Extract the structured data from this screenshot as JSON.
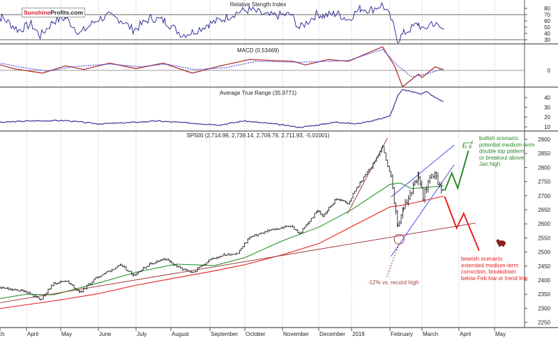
{
  "logo": {
    "part1": "Sunshine",
    "part2": "Profits.com"
  },
  "chart_data": [
    {
      "type": "line",
      "title": "Relative Stength Index",
      "yticks": [
        30,
        40,
        50,
        60,
        70,
        80
      ],
      "ylim": [
        25,
        90
      ],
      "reference_lines": [
        30,
        70
      ],
      "color": "#33339a",
      "points": [
        [
          "2017-03-01",
          60
        ],
        [
          "2017-03-10",
          66
        ],
        [
          "2017-03-25",
          45
        ],
        [
          "2017-04-05",
          55
        ],
        [
          "2017-04-13",
          36
        ],
        [
          "2017-04-25",
          60
        ],
        [
          "2017-05-05",
          65
        ],
        [
          "2017-05-17",
          40
        ],
        [
          "2017-05-31",
          62
        ],
        [
          "2017-06-09",
          68
        ],
        [
          "2017-06-19",
          62
        ],
        [
          "2017-06-29",
          45
        ],
        [
          "2017-07-14",
          65
        ],
        [
          "2017-07-27",
          60
        ],
        [
          "2017-08-10",
          38
        ],
        [
          "2017-08-18",
          42
        ],
        [
          "2017-08-31",
          55
        ],
        [
          "2017-09-11",
          62
        ],
        [
          "2017-09-25",
          74
        ],
        [
          "2017-10-05",
          78
        ],
        [
          "2017-10-20",
          68
        ],
        [
          "2017-11-08",
          70
        ],
        [
          "2017-11-15",
          48
        ],
        [
          "2017-11-30",
          72
        ],
        [
          "2017-12-05",
          68
        ],
        [
          "2017-12-18",
          72
        ],
        [
          "2017-12-29",
          62
        ],
        [
          "2018-01-08",
          80
        ],
        [
          "2018-01-17",
          78
        ],
        [
          "2018-01-26",
          86
        ],
        [
          "2018-02-02",
          63
        ],
        [
          "2018-02-08",
          29
        ],
        [
          "2018-02-13",
          40
        ],
        [
          "2018-02-26",
          56
        ],
        [
          "2018-03-02",
          44
        ],
        [
          "2018-03-09",
          58
        ],
        [
          "2018-03-13",
          53
        ],
        [
          "2018-03-19",
          46
        ]
      ]
    },
    {
      "type": "line",
      "title": "MACD (0.53469)",
      "yticks": [
        0
      ],
      "reference_lines": [
        0
      ],
      "series": [
        {
          "color": "#b03030",
          "points": [
            [
              "2017-03-01",
              9
            ],
            [
              "2017-03-20",
              2
            ],
            [
              "2017-04-15",
              -3
            ],
            [
              "2017-05-05",
              5
            ],
            [
              "2017-05-20",
              1
            ],
            [
              "2017-06-10",
              8
            ],
            [
              "2017-07-01",
              2
            ],
            [
              "2017-07-25",
              8
            ],
            [
              "2017-08-18",
              -3
            ],
            [
              "2017-09-10",
              5
            ],
            [
              "2017-10-05",
              12
            ],
            [
              "2017-11-10",
              10
            ],
            [
              "2017-11-20",
              6
            ],
            [
              "2017-12-10",
              12
            ],
            [
              "2017-12-29",
              10
            ],
            [
              "2018-01-26",
              26
            ],
            [
              "2018-02-05",
              5
            ],
            [
              "2018-02-12",
              -18
            ],
            [
              "2018-02-26",
              -4
            ],
            [
              "2018-03-01",
              -8
            ],
            [
              "2018-03-12",
              4
            ],
            [
              "2018-03-19",
              0.53
            ]
          ]
        },
        {
          "color": "#4a4ae0",
          "dashed": true,
          "points": [
            [
              "2017-03-01",
              10
            ],
            [
              "2017-03-25",
              4
            ],
            [
              "2017-04-20",
              -1
            ],
            [
              "2017-05-10",
              4
            ],
            [
              "2017-06-10",
              7
            ],
            [
              "2017-07-05",
              4
            ],
            [
              "2017-07-28",
              7
            ],
            [
              "2017-08-20",
              1
            ],
            [
              "2017-09-15",
              3
            ],
            [
              "2017-10-10",
              10
            ],
            [
              "2017-11-15",
              9
            ],
            [
              "2017-12-10",
              10
            ],
            [
              "2017-12-29",
              11
            ],
            [
              "2018-01-26",
              23
            ],
            [
              "2018-02-08",
              5
            ],
            [
              "2018-02-20",
              -7
            ],
            [
              "2018-03-05",
              -4
            ],
            [
              "2018-03-19",
              2
            ]
          ]
        }
      ]
    },
    {
      "type": "line",
      "title": "Average True Range (35.9771)",
      "yticks": [
        10,
        20,
        30,
        40
      ],
      "ylim": [
        7,
        50
      ],
      "color": "#33339a",
      "points": [
        [
          "2017-03-01",
          14
        ],
        [
          "2017-04-01",
          16
        ],
        [
          "2017-05-05",
          16.5
        ],
        [
          "2017-06-01",
          13
        ],
        [
          "2017-06-20",
          14
        ],
        [
          "2017-07-20",
          16
        ],
        [
          "2017-08-15",
          14
        ],
        [
          "2017-09-10",
          12
        ],
        [
          "2017-09-30",
          16
        ],
        [
          "2017-10-25",
          13
        ],
        [
          "2017-11-15",
          9.5
        ],
        [
          "2017-12-01",
          12
        ],
        [
          "2017-12-18",
          15
        ],
        [
          "2018-01-05",
          13
        ],
        [
          "2018-01-20",
          17
        ],
        [
          "2018-02-01",
          21
        ],
        [
          "2018-02-08",
          42
        ],
        [
          "2018-02-12",
          48
        ],
        [
          "2018-02-28",
          44
        ],
        [
          "2018-03-05",
          46
        ],
        [
          "2018-03-12",
          40
        ],
        [
          "2018-03-19",
          36
        ]
      ]
    },
    {
      "type": "ohlc",
      "title": "SP500 (2,714.99, 2,739.14, 2,709.79, 2,711.93, -5.01001)",
      "yticks": [
        2250,
        2300,
        2350,
        2400,
        2450,
        2500,
        2550,
        2600,
        2650,
        2700,
        2750,
        2800,
        2850,
        2900
      ],
      "ylim": [
        2230,
        2925
      ],
      "xticks": [
        "ch",
        "April",
        "May",
        "June",
        "July",
        "August",
        "September",
        "October",
        "November",
        "December",
        "2018",
        "February",
        "March",
        "April",
        "May"
      ],
      "close_points": [
        [
          "2017-03-01",
          2380
        ],
        [
          "2017-03-20",
          2365
        ],
        [
          "2017-03-31",
          2362
        ],
        [
          "2017-04-13",
          2330
        ],
        [
          "2017-04-25",
          2388
        ],
        [
          "2017-05-05",
          2399
        ],
        [
          "2017-05-17",
          2357
        ],
        [
          "2017-05-31",
          2411
        ],
        [
          "2017-06-09",
          2432
        ],
        [
          "2017-06-19",
          2453
        ],
        [
          "2017-06-29",
          2419
        ],
        [
          "2017-07-14",
          2459
        ],
        [
          "2017-07-27",
          2475
        ],
        [
          "2017-08-10",
          2438
        ],
        [
          "2017-08-18",
          2425
        ],
        [
          "2017-08-31",
          2471
        ],
        [
          "2017-09-11",
          2488
        ],
        [
          "2017-09-25",
          2497
        ],
        [
          "2017-10-05",
          2552
        ],
        [
          "2017-10-20",
          2575
        ],
        [
          "2017-11-08",
          2594
        ],
        [
          "2017-11-15",
          2564
        ],
        [
          "2017-11-30",
          2647
        ],
        [
          "2017-12-05",
          2629
        ],
        [
          "2017-12-18",
          2690
        ],
        [
          "2017-12-29",
          2673
        ],
        [
          "2018-01-08",
          2747
        ],
        [
          "2018-01-17",
          2802
        ],
        [
          "2018-01-26",
          2872
        ],
        [
          "2018-02-02",
          2762
        ],
        [
          "2018-02-08",
          2581
        ],
        [
          "2018-02-13",
          2662
        ],
        [
          "2018-02-26",
          2779
        ],
        [
          "2018-03-02",
          2691
        ],
        [
          "2018-03-09",
          2786
        ],
        [
          "2018-03-13",
          2765
        ],
        [
          "2018-03-19",
          2712
        ]
      ],
      "sma_50": {
        "color": "#3a9a3a",
        "points": [
          [
            "2017-03-01",
            2330
          ],
          [
            "2017-04-01",
            2350
          ],
          [
            "2017-04-25",
            2348
          ],
          [
            "2017-06-01",
            2390
          ],
          [
            "2017-07-01",
            2428
          ],
          [
            "2017-08-05",
            2457
          ],
          [
            "2017-09-05",
            2452
          ],
          [
            "2017-10-01",
            2480
          ],
          [
            "2017-11-01",
            2540
          ],
          [
            "2017-12-01",
            2588
          ],
          [
            "2018-01-01",
            2650
          ],
          [
            "2018-02-01",
            2740
          ],
          [
            "2018-02-10",
            2745
          ],
          [
            "2018-02-20",
            2725
          ],
          [
            "2018-03-19",
            2735
          ]
        ]
      },
      "sma_200": {
        "color": "#e83030",
        "points": [
          [
            "2017-03-01",
            2295
          ],
          [
            "2017-05-01",
            2330
          ],
          [
            "2017-06-01",
            2352
          ],
          [
            "2017-07-01",
            2382
          ],
          [
            "2017-08-01",
            2405
          ],
          [
            "2017-09-01",
            2430
          ],
          [
            "2017-10-01",
            2455
          ],
          [
            "2017-11-01",
            2490
          ],
          [
            "2017-12-01",
            2530
          ],
          [
            "2018-01-01",
            2590
          ],
          [
            "2018-02-01",
            2660
          ],
          [
            "2018-02-15",
            2668
          ],
          [
            "2018-03-19",
            2698
          ]
        ]
      },
      "trend_lines": [
        {
          "color": "#a04040",
          "from": [
            "2017-03-01",
            2315
          ],
          "to": [
            "2018-04-15",
            2603
          ]
        },
        {
          "color": "#a04040",
          "from": [
            "2017-12-28",
            2635
          ],
          "to": [
            "2018-01-30",
            2905
          ]
        },
        {
          "color": "#5050e0",
          "from": [
            "2018-02-02",
            2695
          ],
          "to": [
            "2018-03-28",
            2880
          ]
        },
        {
          "color": "#5050e0",
          "from": [
            "2018-02-02",
            2485
          ],
          "to": [
            "2018-03-28",
            2810
          ]
        }
      ],
      "annotations": [
        {
          "text": "-12% vs. record high",
          "color": "#a04040",
          "at": [
            "2018-02-09",
            2545
          ]
        },
        {
          "text": "bullish scenario: potential medium-term double top pattern or breakout above Jan high",
          "lines": [
            "bullish scenario:",
            "potential medium-term",
            "double top pattern",
            "or breakout above",
            "Jan high"
          ],
          "color": "#2a8a2a",
          "path": [
            [
              "2018-03-20",
              2717
            ],
            [
              "2018-03-26",
              2780
            ],
            [
              "2018-03-31",
              2727
            ],
            [
              "2018-04-09",
              2860
            ]
          ]
        },
        {
          "text": "bearish scenario: extended medium-term correction, breakdown below Feb low or trend line",
          "lines": [
            "bearish scenario:",
            "extended medium-term",
            "correction, breakdown",
            "below Feb low or trend line"
          ],
          "color": "#e82020",
          "path": [
            [
              "2018-03-20",
              2697
            ],
            [
              "2018-03-30",
              2585
            ],
            [
              "2018-04-05",
              2637
            ],
            [
              "2018-04-18",
              2505
            ]
          ]
        }
      ]
    }
  ]
}
